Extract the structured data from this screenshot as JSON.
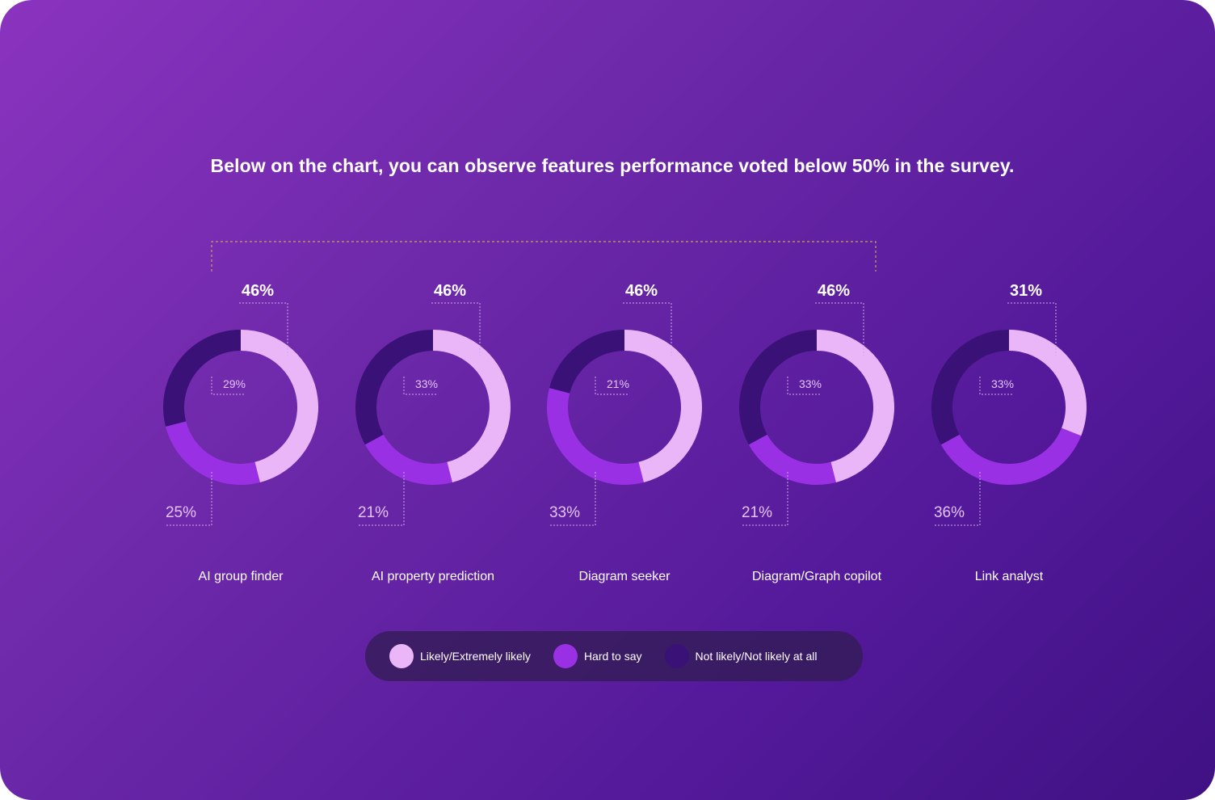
{
  "headline": "Below on the chart, you can observe features performance voted below 50% in the survey.",
  "colors": {
    "likely": "#eab6f8",
    "hard": "#9a30e4",
    "not_likely": "#3a1177",
    "guide_line": "#cfa7ea",
    "bracket_line": "#c9a05c",
    "label_white": "#ffffff",
    "label_soft": "#e3c3f7"
  },
  "legend": [
    {
      "label": "Likely/Extremely likely",
      "color": "#eab6f8"
    },
    {
      "label": "Hard to say",
      "color": "#9a30e4"
    },
    {
      "label": "Not likely/Not likely at all",
      "color": "#3a1177"
    }
  ],
  "chart_data": {
    "type": "pie",
    "variant": "donut",
    "series_names": [
      "Likely/Extremely likely",
      "Hard to say",
      "Not likely/Not likely at all"
    ],
    "categories": [
      "AI group finder",
      "AI property prediction",
      "Diagram seeker",
      "Diagram/Graph copilot",
      "Link analyst"
    ],
    "charts": [
      {
        "name": "AI group finder",
        "values": [
          46,
          25,
          29
        ],
        "labels": [
          "46%",
          "25%",
          "29%"
        ]
      },
      {
        "name": "AI property prediction",
        "values": [
          46,
          21,
          33
        ],
        "labels": [
          "46%",
          "21%",
          "33%"
        ]
      },
      {
        "name": "Diagram seeker",
        "values": [
          46,
          33,
          21
        ],
        "labels": [
          "46%",
          "33%",
          "21%"
        ]
      },
      {
        "name": "Diagram/Graph copilot",
        "values": [
          46,
          21,
          33
        ],
        "labels": [
          "46%",
          "21%",
          "33%"
        ]
      },
      {
        "name": "Link analyst",
        "values": [
          31,
          36,
          33
        ],
        "labels": [
          "31%",
          "36%",
          "33%"
        ]
      }
    ],
    "legend_position": "bottom"
  }
}
